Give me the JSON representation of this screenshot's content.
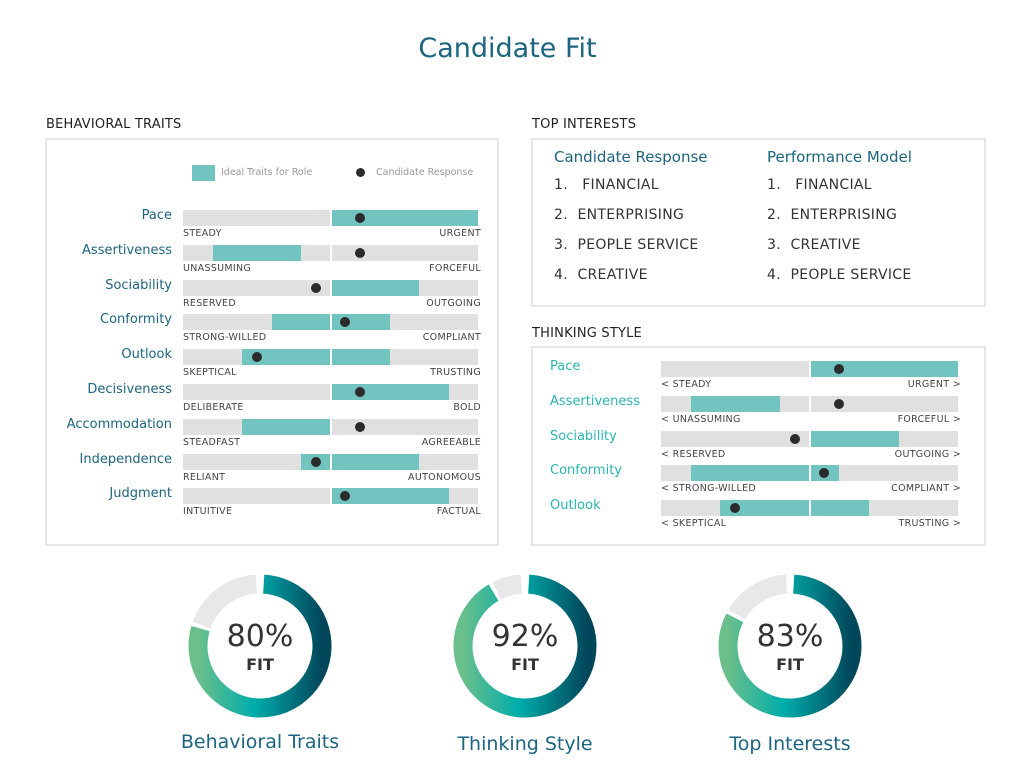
{
  "title": "Candidate Fit",
  "behavioral": {
    "heading": "BEHAVIORAL TRAITS",
    "legend_ideal": "Ideal Traits for Role",
    "legend_candidate": "Candidate Response"
  },
  "thinking": {
    "heading": "THINKING STYLE"
  },
  "interests": {
    "heading": "TOP INTERESTS",
    "candidate_heading": "Candidate Response",
    "model_heading": "Performance Model",
    "candidate": [
      "1.   FINANCIAL",
      "2.  ENTERPRISING",
      "3.  PEOPLE SERVICE",
      "4.  CREATIVE"
    ],
    "model": [
      "1.   FINANCIAL",
      "2.  ENTERPRISING",
      "3.  CREATIVE",
      "4.  PEOPLE SERVICE"
    ]
  },
  "colors": {
    "ideal": "#72c4c0",
    "candidate": "#2b2b2b",
    "track": "#e0e0e0",
    "title": "#1d6480",
    "gradient": [
      "#6bbf8a",
      "#00adab",
      "#02465a"
    ]
  },
  "chart_data": [
    {
      "type": "range-dot",
      "title": "BEHAVIORAL TRAITS",
      "scale": [
        0,
        100
      ],
      "series": [
        {
          "name": "Ideal Traits for Role"
        },
        {
          "name": "Candidate Response"
        }
      ],
      "rows": [
        {
          "label": "Pace",
          "left": "STEADY",
          "right": "URGENT",
          "ideal": [
            50,
            100
          ],
          "candidate": 60
        },
        {
          "label": "Assertiveness",
          "left": "UNASSUMING",
          "right": "FORCEFUL",
          "ideal": [
            10,
            40
          ],
          "candidate": 60
        },
        {
          "label": "Sociability",
          "left": "RESERVED",
          "right": "OUTGOING",
          "ideal": [
            50,
            80
          ],
          "candidate": 45
        },
        {
          "label": "Conformity",
          "left": "STRONG-WILLED",
          "right": "COMPLIANT",
          "ideal": [
            30,
            70
          ],
          "candidate": 55
        },
        {
          "label": "Outlook",
          "left": "SKEPTICAL",
          "right": "TRUSTING",
          "ideal": [
            20,
            70
          ],
          "candidate": 25
        },
        {
          "label": "Decisiveness",
          "left": "DELIBERATE",
          "right": "BOLD",
          "ideal": [
            50,
            90
          ],
          "candidate": 60
        },
        {
          "label": "Accommodation",
          "left": "STEADFAST",
          "right": "AGREEABLE",
          "ideal": [
            20,
            50
          ],
          "candidate": 60
        },
        {
          "label": "Independence",
          "left": "RELIANT",
          "right": "AUTONOMOUS",
          "ideal": [
            40,
            80
          ],
          "candidate": 45
        },
        {
          "label": "Judgment",
          "left": "INTUITIVE",
          "right": "FACTUAL",
          "ideal": [
            50,
            90
          ],
          "candidate": 55
        }
      ]
    },
    {
      "type": "range-dot",
      "title": "THINKING STYLE",
      "scale": [
        0,
        100
      ],
      "rows": [
        {
          "label": "Pace",
          "left": "< STEADY",
          "right": "URGENT >",
          "ideal": [
            50,
            100
          ],
          "candidate": 60
        },
        {
          "label": "Assertiveness",
          "left": "< UNASSUMING",
          "right": "FORCEFUL >",
          "ideal": [
            10,
            40
          ],
          "candidate": 60
        },
        {
          "label": "Sociability",
          "left": "< RESERVED",
          "right": "OUTGOING >",
          "ideal": [
            50,
            80
          ],
          "candidate": 45
        },
        {
          "label": "Conformity",
          "left": "< STRONG-WILLED",
          "right": "COMPLIANT >",
          "ideal": [
            10,
            60
          ],
          "candidate": 55
        },
        {
          "label": "Outlook",
          "left": "< SKEPTICAL",
          "right": "TRUSTING >",
          "ideal": [
            20,
            70
          ],
          "candidate": 25
        }
      ]
    },
    {
      "type": "pie",
      "subtype": "donut",
      "items": [
        {
          "label": "Behavioral Traits",
          "value": 80,
          "pct": "80%",
          "fit": "FIT"
        },
        {
          "label": "Thinking Style",
          "value": 92,
          "pct": "92%",
          "fit": "FIT"
        },
        {
          "label": "Top Interests",
          "value": 83,
          "pct": "83%",
          "fit": "FIT"
        }
      ]
    }
  ]
}
